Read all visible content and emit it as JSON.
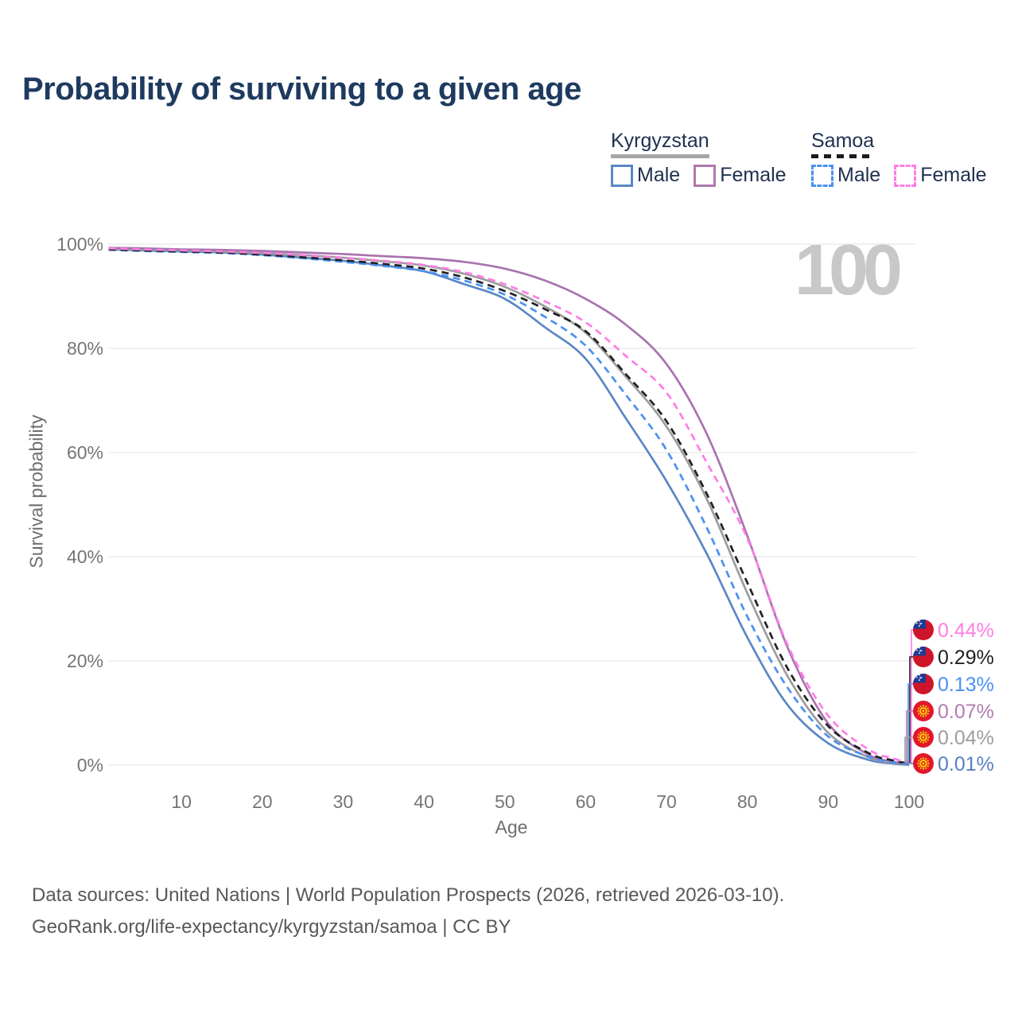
{
  "title": "Probability of surviving to a given age",
  "watermark": "100",
  "legend": {
    "groups": [
      {
        "label": "Kyrgyzstan",
        "style": "solid",
        "underline_color": "#a6a6a6",
        "items": [
          {
            "label": "Male",
            "color": "#5b87c5"
          },
          {
            "label": "Female",
            "color": "#ad79ad"
          }
        ]
      },
      {
        "label": "Samoa",
        "style": "dashed",
        "underline_color": "#1a1a1a",
        "items": [
          {
            "label": "Male",
            "color": "#4a91f2"
          },
          {
            "label": "Female",
            "color": "#ff7de4"
          }
        ]
      }
    ]
  },
  "chart_data": {
    "type": "line",
    "title": "Probability of surviving to a given age",
    "x_label": "Age",
    "y_label": "Survival probability",
    "x_ticks": [
      10,
      20,
      30,
      40,
      50,
      60,
      70,
      80,
      90,
      100
    ],
    "y_ticks": [
      0,
      20,
      40,
      60,
      80,
      100
    ],
    "y_tick_suffix": "%",
    "xlim": [
      1,
      100
    ],
    "ylim": [
      0,
      100
    ],
    "grid": "horizontal-only",
    "legend_position": "top-right",
    "ages": [
      1,
      5,
      10,
      15,
      20,
      25,
      30,
      35,
      40,
      45,
      50,
      55,
      60,
      65,
      70,
      75,
      80,
      85,
      90,
      95,
      98,
      100
    ],
    "series": [
      {
        "name": "Kyrgyzstan Male",
        "country": "Kyrgyzstan",
        "sex": "male",
        "style": "solid",
        "color": "#5b87c5",
        "end_label": "0.01%",
        "flag": "kyrgyzstan",
        "values": [
          99.0,
          98.8,
          98.6,
          98.4,
          98.0,
          97.4,
          96.8,
          95.9,
          94.8,
          92.3,
          89.5,
          84.0,
          78.0,
          66.5,
          54.5,
          40.5,
          24.5,
          11.5,
          4.2,
          1.0,
          0.3,
          0.01
        ]
      },
      {
        "name": "Kyrgyzstan Both sexes",
        "country": "Kyrgyzstan",
        "sex": "both",
        "style": "solid",
        "color": "#9d9d9d",
        "end_label": "0.04%",
        "flag": "kyrgyzstan",
        "values": [
          99.1,
          99.0,
          98.8,
          98.6,
          98.3,
          97.9,
          97.4,
          96.7,
          95.9,
          94.3,
          91.8,
          88.0,
          83.0,
          74.5,
          65.0,
          51.0,
          33.0,
          17.0,
          6.2,
          1.5,
          0.5,
          0.04
        ]
      },
      {
        "name": "Kyrgyzstan Female",
        "country": "Kyrgyzstan",
        "sex": "female",
        "style": "solid",
        "color": "#a873af",
        "end_label": "0.07%",
        "flag": "kyrgyzstan",
        "values": [
          99.3,
          99.2,
          99.0,
          98.9,
          98.7,
          98.4,
          98.1,
          97.7,
          97.3,
          96.6,
          95.3,
          93.0,
          89.5,
          84.5,
          77.0,
          63.5,
          44.0,
          22.5,
          8.0,
          2.0,
          0.7,
          0.07
        ]
      },
      {
        "name": "Samoa Male",
        "country": "Samoa",
        "sex": "male",
        "style": "dashed",
        "color": "#4a91f2",
        "end_label": "0.13%",
        "flag": "samoa",
        "values": [
          98.9,
          98.7,
          98.5,
          98.3,
          97.9,
          97.3,
          96.6,
          95.8,
          94.8,
          93.0,
          90.3,
          86.0,
          80.5,
          71.0,
          60.5,
          45.5,
          28.5,
          14.8,
          5.5,
          1.6,
          0.6,
          0.13
        ]
      },
      {
        "name": "Samoa Both sexes",
        "country": "Samoa",
        "sex": "both",
        "style": "dashed",
        "color": "#212121",
        "end_label": "0.29%",
        "flag": "samoa",
        "values": [
          99.0,
          98.8,
          98.6,
          98.4,
          98.0,
          97.5,
          96.9,
          96.2,
          95.3,
          93.6,
          91.0,
          87.5,
          83.3,
          75.0,
          66.0,
          52.0,
          35.0,
          18.5,
          7.5,
          2.3,
          0.9,
          0.29
        ]
      },
      {
        "name": "Samoa Female",
        "country": "Samoa",
        "sex": "female",
        "style": "dashed",
        "color": "#ff7de4",
        "end_label": "0.44%",
        "flag": "samoa",
        "values": [
          99.2,
          99.0,
          98.8,
          98.6,
          98.3,
          97.9,
          97.4,
          96.8,
          96.0,
          94.6,
          92.3,
          89.0,
          85.0,
          78.5,
          71.5,
          58.0,
          43.5,
          23.0,
          9.5,
          3.0,
          1.3,
          0.44
        ]
      }
    ],
    "end_labels": [
      {
        "label": "0.44%",
        "series": "Samoa Female",
        "flag": "samoa",
        "color": "#ff7de4"
      },
      {
        "label": "0.29%",
        "series": "Samoa Both sexes",
        "flag": "samoa",
        "color": "#212121"
      },
      {
        "label": "0.13%",
        "series": "Samoa Male",
        "flag": "samoa",
        "color": "#4a91f2"
      },
      {
        "label": "0.07%",
        "series": "Kyrgyzstan Female",
        "flag": "kyrgyzstan",
        "color": "#b27cb2"
      },
      {
        "label": "0.04%",
        "series": "Kyrgyzstan Both sexes",
        "flag": "kyrgyzstan",
        "color": "#9d9d9d"
      },
      {
        "label": "0.01%",
        "series": "Kyrgyzstan Male",
        "flag": "kyrgyzstan",
        "color": "#567fc0"
      }
    ]
  },
  "footer": {
    "line1": "Data sources: United Nations | World Population Prospects (2026, retrieved 2026-03-10).",
    "line2": "GeoRank.org/life-expectancy/kyrgyzstan/samoa | CC BY"
  }
}
